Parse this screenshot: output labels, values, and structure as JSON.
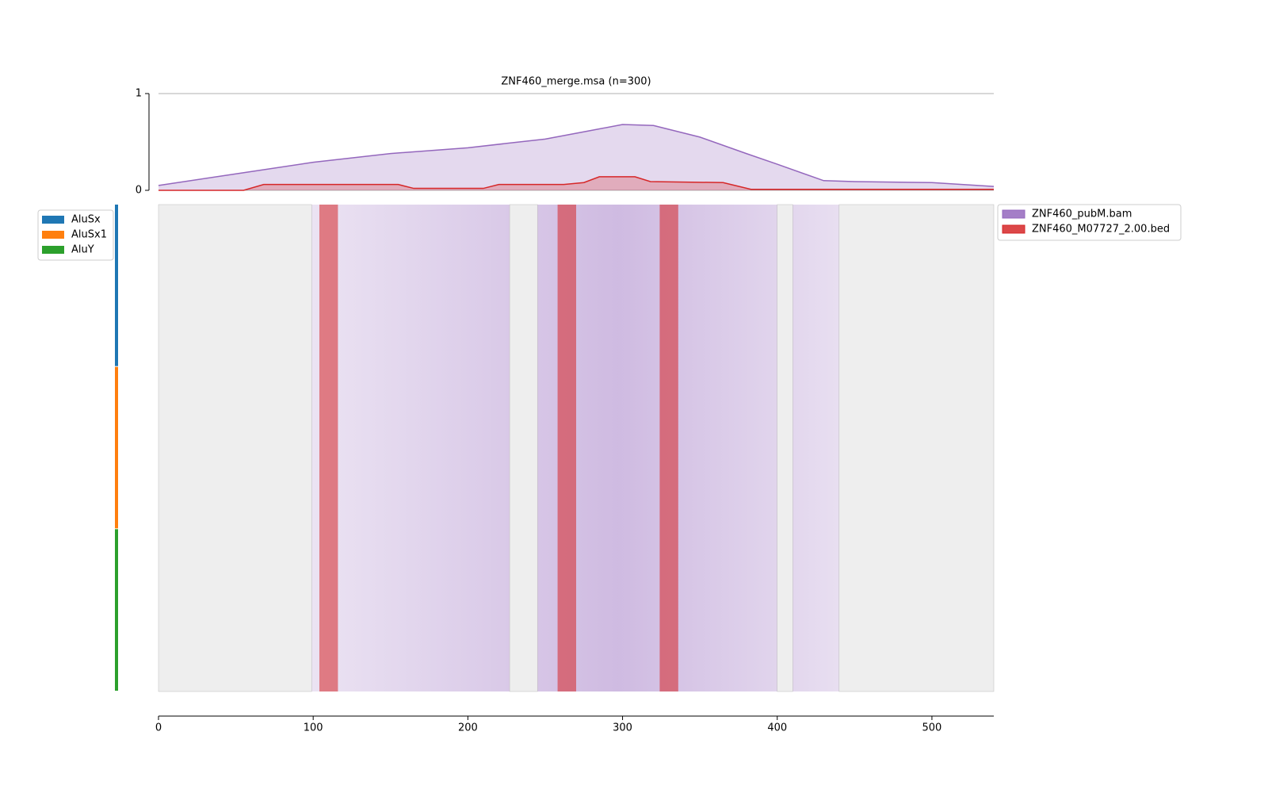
{
  "chart_data": {
    "type": "line",
    "title": "ZNF460_merge.msa (n=300)",
    "xlim": [
      0,
      540
    ],
    "xticks": [
      0,
      100,
      200,
      300,
      400,
      500
    ],
    "ylim": [
      0,
      1
    ],
    "yticks": [
      0,
      1
    ],
    "grid": true,
    "legend": "upper right",
    "series": [
      {
        "name": "ZNF460_pubM.bam",
        "color": "#9467bd",
        "x": [
          0,
          50,
          100,
          150,
          200,
          250,
          280,
          300,
          320,
          350,
          380,
          400,
          430,
          450,
          500,
          540
        ],
        "values": [
          0.05,
          0.17,
          0.29,
          0.38,
          0.44,
          0.53,
          0.62,
          0.68,
          0.67,
          0.55,
          0.38,
          0.27,
          0.1,
          0.09,
          0.08,
          0.04
        ]
      },
      {
        "name": "ZNF460_M07727_2.00.bed",
        "color": "#d62728",
        "x": [
          0,
          55,
          68,
          100,
          155,
          165,
          210,
          220,
          262,
          275,
          285,
          308,
          318,
          365,
          383,
          540
        ],
        "values": [
          0,
          0,
          0.06,
          0.06,
          0.06,
          0.02,
          0.02,
          0.06,
          0.06,
          0.08,
          0.14,
          0.14,
          0.09,
          0.08,
          0.01,
          0.01
        ]
      }
    ],
    "groups": [
      {
        "name": "AluSx",
        "color": "#1f77b4",
        "rows": 100
      },
      {
        "name": "AluSx1",
        "color": "#ff7f0e",
        "rows": 100
      },
      {
        "name": "AluY",
        "color": "#2ca02c",
        "rows": 100
      }
    ],
    "gap_regions": [
      [
        0,
        99
      ],
      [
        227,
        245
      ],
      [
        400,
        410
      ],
      [
        440,
        540
      ]
    ],
    "motif_regions": [
      [
        104,
        116
      ],
      [
        258,
        270
      ],
      [
        324,
        336
      ]
    ]
  }
}
